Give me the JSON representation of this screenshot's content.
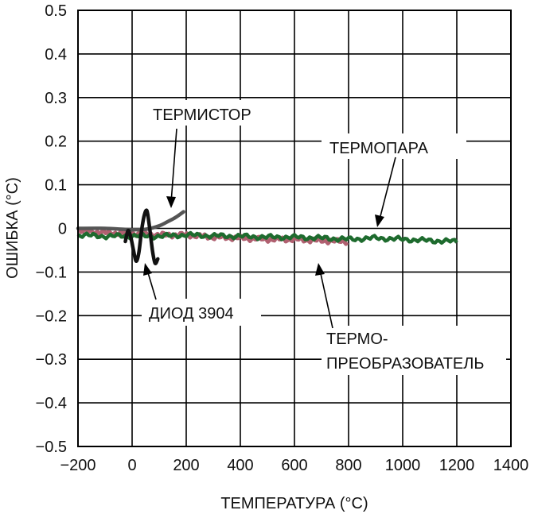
{
  "chart_data": {
    "type": "line",
    "title": "",
    "xlabel": "ТЕМПЕРАТУРА (°C)",
    "ylabel": "ОШИБКА (°C)",
    "xlim": [
      -200,
      1400
    ],
    "ylim": [
      -0.5,
      0.5
    ],
    "x_ticks": [
      "−200",
      "0",
      "200",
      "400",
      "600",
      "800",
      "1000",
      "1200",
      "1400"
    ],
    "y_ticks": [
      "0.5",
      "0.4",
      "0.3",
      "0.2",
      "0.1",
      "0",
      "−0.1",
      "−0.2",
      "−0.3",
      "−0.4",
      "−0.5"
    ],
    "grid": true,
    "legend": "none (inline annotations)",
    "series": [
      {
        "name": "ТЕРМИСТОР",
        "color": "#555555",
        "x": [
          -200,
          -100,
          0,
          50,
          100,
          130,
          160,
          190
        ],
        "y": [
          0.0,
          0.0,
          -0.003,
          -0.002,
          0.006,
          0.015,
          0.025,
          0.038
        ]
      },
      {
        "name": "ДИОД 3904",
        "color": "#111111",
        "x": [
          -25,
          -15,
          -5,
          5,
          15,
          25,
          35,
          45,
          55,
          65,
          75,
          85,
          95
        ],
        "y": [
          -0.03,
          -0.005,
          -0.02,
          -0.05,
          -0.075,
          -0.055,
          -0.005,
          0.03,
          0.04,
          0.0,
          -0.05,
          -0.08,
          -0.07
        ]
      },
      {
        "name": "ТЕРМОПРЕОБРАЗОВАТЕЛЬ",
        "color": "#b06070",
        "x": [
          -200,
          -100,
          0,
          100,
          200,
          300,
          400,
          500,
          600,
          700,
          800
        ],
        "y": [
          -0.005,
          -0.01,
          -0.012,
          -0.015,
          -0.015,
          -0.02,
          -0.022,
          -0.025,
          -0.025,
          -0.028,
          -0.03
        ]
      },
      {
        "name": "ТЕРМОПАРА",
        "color": "#1e6b2e",
        "x": [
          -200,
          -100,
          0,
          100,
          200,
          300,
          400,
          500,
          600,
          700,
          800,
          900,
          1000,
          1100,
          1200
        ],
        "y": [
          -0.015,
          -0.018,
          -0.017,
          -0.018,
          -0.015,
          -0.017,
          -0.018,
          -0.02,
          -0.02,
          -0.022,
          -0.025,
          -0.022,
          -0.025,
          -0.028,
          -0.03
        ]
      }
    ],
    "annotations": {
      "thermistor": "ТЕРМИСТОР",
      "thermocouple": "ТЕРМОПАРА",
      "diode": "ДИОД 3904",
      "transducer_line1": "ТЕРМО-",
      "transducer_line2": "ПРЕОБРАЗОВАТЕЛЬ"
    }
  }
}
